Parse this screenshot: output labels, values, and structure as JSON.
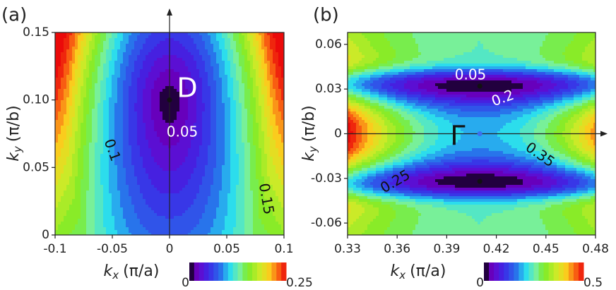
{
  "chart_data": [
    {
      "type": "contour",
      "panel_label": "(a)",
      "xlabel": {
        "symbol": "k",
        "sub": "x",
        "unit": "(π/a)"
      },
      "ylabel": {
        "symbol": "k",
        "sub": "y",
        "unit": "(π/b)"
      },
      "xlim": [
        -0.1,
        0.1
      ],
      "xticks": [
        -0.1,
        -0.05,
        0,
        0.05,
        0.1
      ],
      "ylim": [
        0,
        0.15
      ],
      "yticks": [
        0,
        0.05,
        {
          "value": 0.1,
          "label": "0.10"
        },
        0.15
      ],
      "colorbar": {
        "range": [
          0,
          0.25
        ],
        "ticks": [
          0,
          0.25
        ]
      },
      "annotations": [
        "D",
        "0.05",
        "0.1",
        "0.15"
      ]
    },
    {
      "type": "contour",
      "panel_label": "(b)",
      "xlabel": {
        "symbol": "k",
        "sub": "x",
        "unit": "(π/a)"
      },
      "ylabel": {
        "symbol": "k",
        "sub": "y",
        "unit": "(π/b)"
      },
      "xlim": [
        0.33,
        0.48
      ],
      "xticks": [
        0.33,
        0.36,
        0.39,
        0.42,
        0.45,
        0.48
      ],
      "ylim": [
        -0.068,
        0.068
      ],
      "yticks": [
        -0.06,
        -0.03,
        0,
        0.03,
        0.06
      ],
      "colorbar": {
        "range": [
          0,
          0.5
        ],
        "ticks": [
          0,
          0.5
        ]
      },
      "annotations": [
        "0.05",
        "0.2",
        "Γ",
        "0.25",
        "0.35"
      ]
    }
  ]
}
